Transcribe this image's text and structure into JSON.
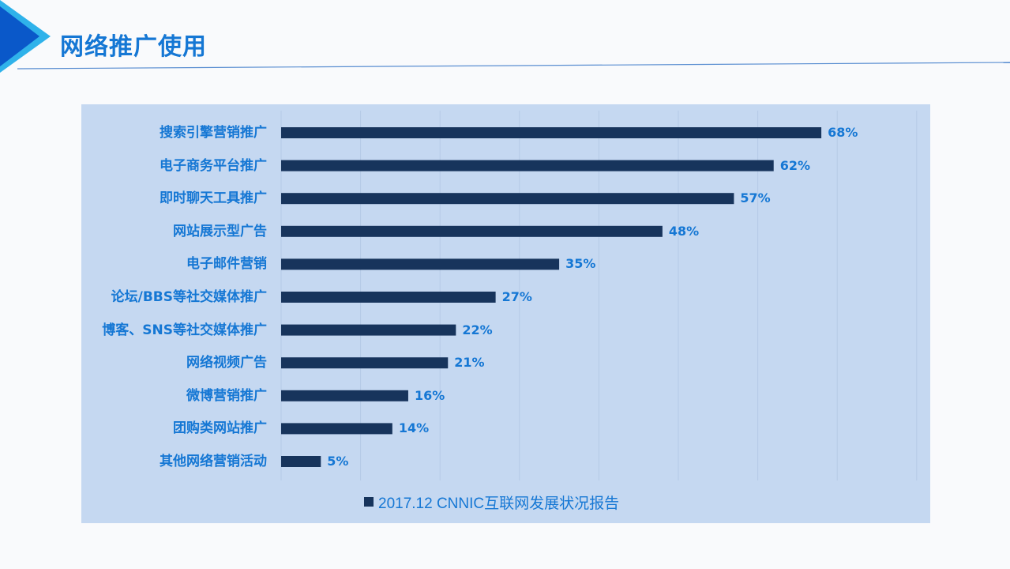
{
  "header": {
    "title": "网络推广使用"
  },
  "colors": {
    "accent": "#1577d4",
    "bar": "#17345c",
    "panel": "#c5d8f1",
    "arrow_light": "#2fb2ea",
    "arrow_dark": "#0a58c9"
  },
  "chart_data": {
    "type": "bar",
    "orientation": "horizontal",
    "categories": [
      "搜索引擎营销推广",
      "电子商务平台推广",
      "即时聊天工具推广",
      "网站展示型广告",
      "电子邮件营销",
      "论坛/BBS等社交媒体推广",
      "博客、SNS等社交媒体推广",
      "网络视频广告",
      "微博营销推广",
      "团购类网站推广",
      "其他网络营销活动"
    ],
    "series": [
      {
        "name": "2017.12 CNNIC互联网发展状况报告",
        "values": [
          68,
          62,
          57,
          48,
          35,
          27,
          22,
          21,
          16,
          14,
          5
        ],
        "labels": [
          "68%",
          "62%",
          "57%",
          "48%",
          "35%",
          "27%",
          "22%",
          "21%",
          "16%",
          "14%",
          "5%"
        ]
      }
    ],
    "xlim": [
      0,
      80
    ],
    "grid": true,
    "legend_position": "bottom"
  }
}
